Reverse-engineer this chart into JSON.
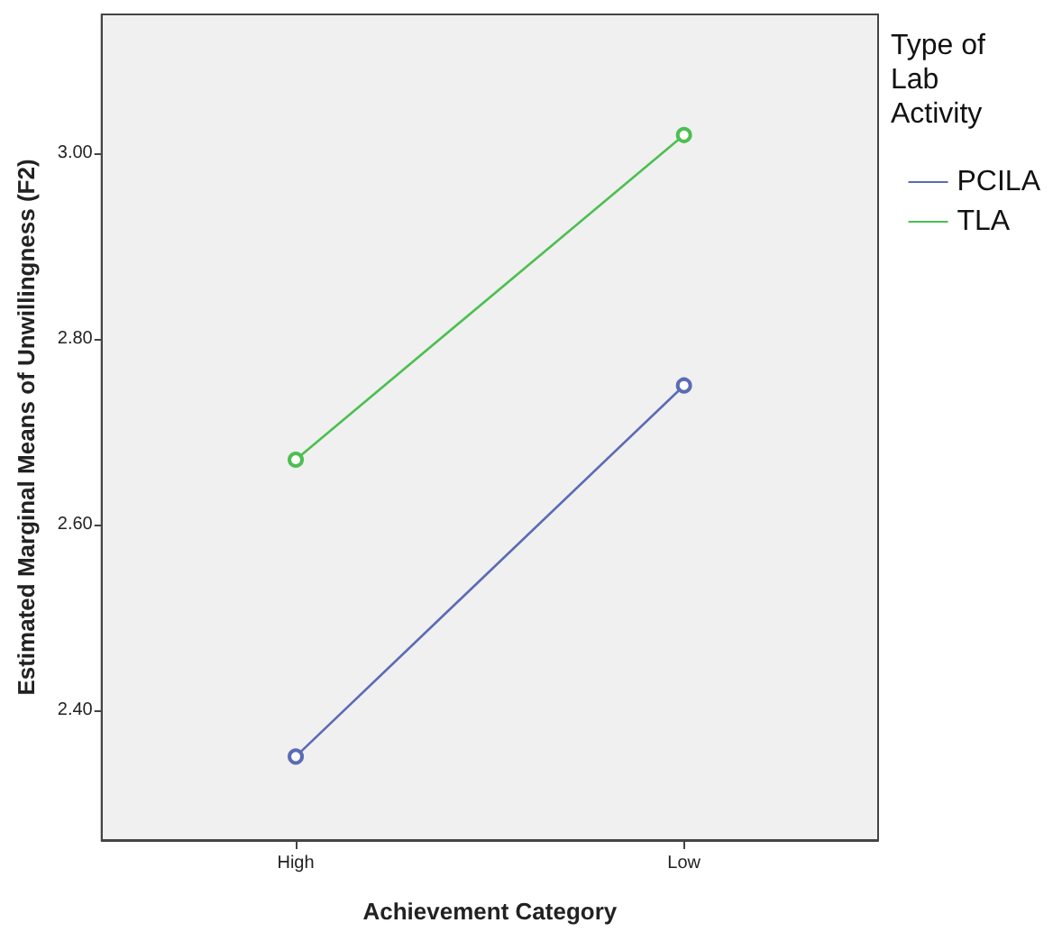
{
  "chart_data": {
    "type": "line",
    "xlabel": "Achievement Category",
    "ylabel": "Estimated Marginal Means of Unwillingness (F2)",
    "legend_title": "Type of Lab Activity",
    "categories": [
      "High",
      "Low"
    ],
    "series": [
      {
        "name": "PCILA",
        "color": "#5b6bb4",
        "values": [
          2.35,
          2.75
        ]
      },
      {
        "name": "TLA",
        "color": "#4cbf50",
        "values": [
          2.67,
          3.02
        ]
      }
    ],
    "ylim": [
      2.26,
      3.15
    ],
    "yticks": [
      {
        "value": 2.4,
        "label": "2.40"
      },
      {
        "value": 2.6,
        "label": "2.60"
      },
      {
        "value": 2.8,
        "label": "2.80"
      },
      {
        "value": 3.0,
        "label": "3.00"
      }
    ],
    "grid": false,
    "legend": "right",
    "marker": "circle",
    "line_style": "solid"
  }
}
